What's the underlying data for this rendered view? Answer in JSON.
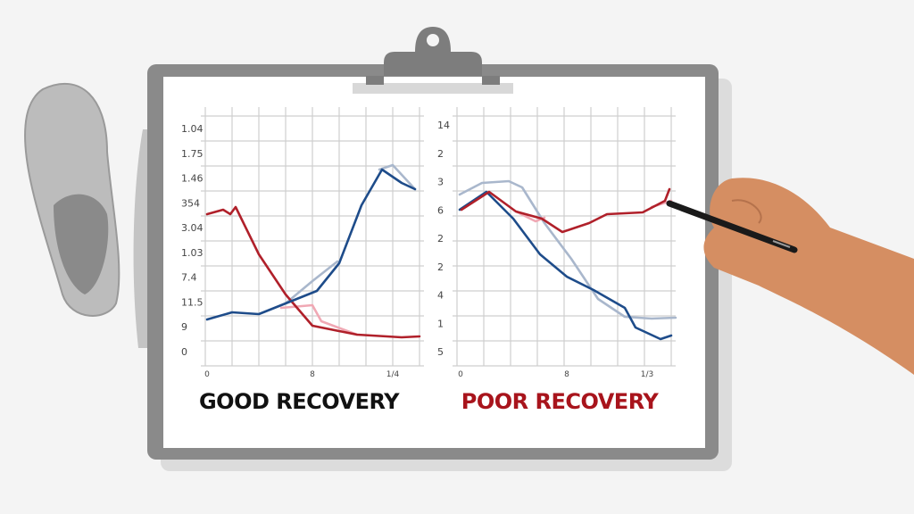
{
  "panels": [
    {
      "title": "GOOD RECOVERY",
      "y_labels": [
        "1.04",
        "1.75",
        "1.46",
        "354",
        "3.04",
        "1.03",
        "7.4",
        "11.5",
        "9",
        "0"
      ],
      "x_labels": [
        "0",
        "8",
        "1/4"
      ]
    },
    {
      "title": "POOR RECOVERY",
      "y_labels": [
        "14",
        "2",
        "3",
        "6",
        "2",
        "2",
        "4",
        "1",
        "5"
      ],
      "x_labels": [
        "0",
        "8",
        "1/3"
      ]
    }
  ]
}
